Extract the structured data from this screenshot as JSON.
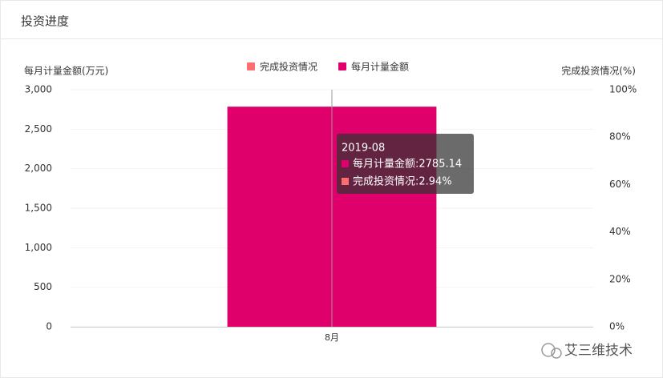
{
  "header": {
    "title": "投资进度"
  },
  "chart_data": {
    "type": "bar",
    "ylabel": "每月计量金额(万元)",
    "y2label": "完成投资情况(%)",
    "categories": [
      "8月"
    ],
    "series": [
      {
        "name": "完成投资情况",
        "type": "line",
        "color": "#ff6e6e",
        "axis": "y2",
        "values": [
          2.94
        ]
      },
      {
        "name": "每月计量金额",
        "type": "bar",
        "color": "#e0006c",
        "values": [
          2785.14
        ]
      }
    ],
    "ylim": [
      0,
      3000
    ],
    "yticks": [
      0,
      500,
      {
        "value": 1000,
        "label": "1,000"
      },
      {
        "value": 1500,
        "label": "1,500"
      },
      {
        "value": 2000,
        "label": "2,000"
      },
      {
        "value": 2500,
        "label": "2,500"
      },
      {
        "value": 3000,
        "label": "3,000"
      }
    ],
    "y2lim": [
      0,
      100
    ],
    "y2ticks": [
      {
        "value": 0,
        "label": "0%"
      },
      {
        "value": 20,
        "label": "20%"
      },
      {
        "value": 40,
        "label": "40%"
      },
      {
        "value": 60,
        "label": "60%"
      },
      {
        "value": 80,
        "label": "80%"
      },
      {
        "value": 100,
        "label": "100%"
      }
    ],
    "grid": true,
    "legend": "top",
    "tooltip": {
      "title": "2019-08",
      "lines": [
        "每月计量金额:2785.14",
        "完成投资情况:2.94%"
      ]
    }
  },
  "watermark": "艾三维技术"
}
